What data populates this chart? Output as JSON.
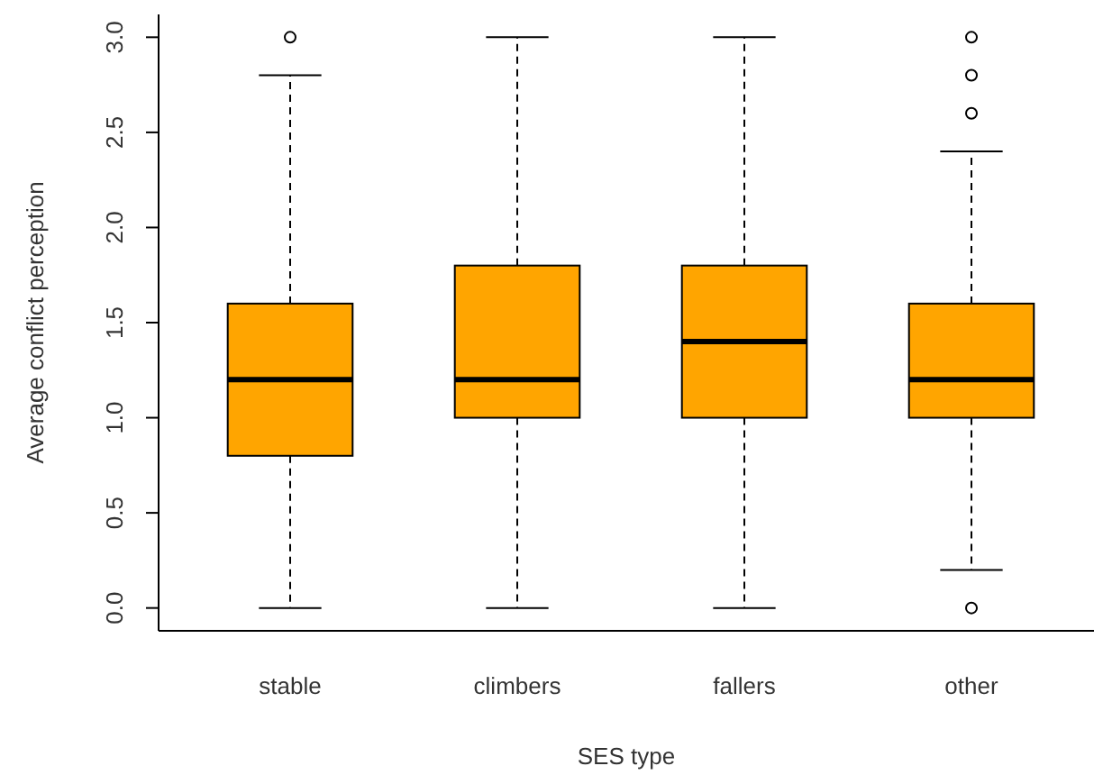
{
  "chart_data": {
    "type": "box",
    "xlabel": "SES type",
    "ylabel": "Average conflict perception",
    "categories": [
      "stable",
      "climbers",
      "fallers",
      "other"
    ],
    "color": "#ffa500",
    "boxes": [
      {
        "low": 0,
        "q1": 0.8,
        "median": 1.2,
        "q3": 1.6,
        "high": 2.8,
        "outliers": [
          3.0
        ]
      },
      {
        "low": 0,
        "q1": 1.0,
        "median": 1.2,
        "q3": 1.8,
        "high": 3.0
      },
      {
        "low": 0,
        "q1": 1.0,
        "median": 1.4,
        "q3": 1.8,
        "high": 3.0
      },
      {
        "low": 0.2,
        "q1": 1.0,
        "median": 1.2,
        "q3": 1.6,
        "high": 2.4,
        "outliers": [
          0,
          2.6,
          2.8,
          3.0
        ]
      }
    ],
    "ylim": [
      -0.12,
      3.12
    ],
    "yticks": [
      {
        "value": 0,
        "label": "0.0"
      },
      {
        "value": 0.5,
        "label": "0.5"
      },
      {
        "value": 1,
        "label": "1.0"
      },
      {
        "value": 1.5,
        "label": "1.5"
      },
      {
        "value": 2,
        "label": "2.0"
      },
      {
        "value": 2.5,
        "label": "2.5"
      },
      {
        "value": 3,
        "label": "3.0"
      }
    ],
    "grid": false
  }
}
